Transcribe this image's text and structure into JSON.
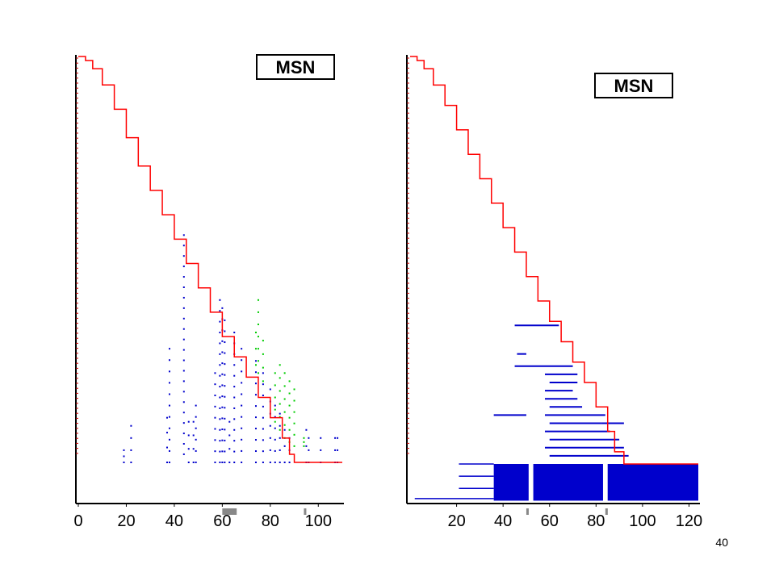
{
  "page_number": "40",
  "colors": {
    "background": "#ffffff",
    "axis": "#000000",
    "curve": "#ff0000",
    "points_primary": "#0000cc",
    "points_secondary": "#00cc00",
    "fill_blue": "#0000cc",
    "marker_gray": "#888888",
    "tick_red": "#cc0000"
  },
  "chart_data": [
    {
      "type": "scatter",
      "label_box": "MSN",
      "title": "",
      "xlabel": "",
      "ylabel": "",
      "xlim": [
        0,
        110
      ],
      "x_ticks": [
        "0",
        "20",
        "40",
        "60",
        "80",
        "100"
      ],
      "x_tick_values": [
        0,
        20,
        40,
        60,
        80,
        100
      ],
      "curve": {
        "name": "",
        "x": [
          0,
          3,
          6,
          10,
          15,
          20,
          25,
          30,
          35,
          40,
          45,
          50,
          55,
          60,
          65,
          70,
          75,
          80,
          85,
          88,
          90,
          95,
          100,
          105,
          110
        ],
        "y": [
          1.0,
          0.99,
          0.97,
          0.93,
          0.87,
          0.8,
          0.73,
          0.67,
          0.61,
          0.55,
          0.49,
          0.43,
          0.37,
          0.31,
          0.26,
          0.21,
          0.16,
          0.11,
          0.06,
          0.02,
          0.0,
          0.0,
          0.0,
          0.0,
          0.0
        ]
      },
      "clusters": [
        {
          "color_key": "points_primary",
          "x": 19,
          "y0": 0.0,
          "y1": 0.03
        },
        {
          "color_key": "points_primary",
          "x": 22,
          "y0": 0.0,
          "y1": 0.09
        },
        {
          "color_key": "points_primary",
          "x": 37,
          "y0": 0.0,
          "y1": 0.11
        },
        {
          "color_key": "points_primary",
          "x": 38,
          "y0": 0.0,
          "y1": 0.28
        },
        {
          "color_key": "points_primary",
          "x": 44,
          "y0": 0.02,
          "y1": 0.56
        },
        {
          "color_key": "points_primary",
          "x": 46,
          "y0": 0.0,
          "y1": 0.1
        },
        {
          "color_key": "points_primary",
          "x": 48,
          "y0": 0.0,
          "y1": 0.1
        },
        {
          "color_key": "points_primary",
          "x": 49,
          "y0": 0.0,
          "y1": 0.14
        },
        {
          "color_key": "points_primary",
          "x": 57,
          "y0": 0.0,
          "y1": 0.22
        },
        {
          "color_key": "points_primary",
          "x": 59,
          "y0": 0.0,
          "y1": 0.4
        },
        {
          "color_key": "points_primary",
          "x": 60,
          "y0": 0.0,
          "y1": 0.38
        },
        {
          "color_key": "points_primary",
          "x": 61,
          "y0": 0.0,
          "y1": 0.35
        },
        {
          "color_key": "points_primary",
          "x": 63,
          "y0": 0.0,
          "y1": 0.1
        },
        {
          "color_key": "points_primary",
          "x": 65,
          "y0": 0.0,
          "y1": 0.32
        },
        {
          "color_key": "points_primary",
          "x": 68,
          "y0": 0.0,
          "y1": 0.28
        },
        {
          "color_key": "points_primary",
          "x": 74,
          "y0": 0.0,
          "y1": 0.25
        },
        {
          "color_key": "points_primary",
          "x": 77,
          "y0": 0.0,
          "y1": 0.22
        },
        {
          "color_key": "points_primary",
          "x": 80,
          "y0": 0.0,
          "y1": 0.18
        },
        {
          "color_key": "points_primary",
          "x": 82,
          "y0": 0.0,
          "y1": 0.14
        },
        {
          "color_key": "points_primary",
          "x": 84,
          "y0": 0.0,
          "y1": 0.12
        },
        {
          "color_key": "points_primary",
          "x": 86,
          "y0": 0.0,
          "y1": 0.08
        },
        {
          "color_key": "points_primary",
          "x": 88,
          "y0": 0.0,
          "y1": 0.06
        },
        {
          "color_key": "points_primary",
          "x": 95,
          "y0": 0.0,
          "y1": 0.08
        },
        {
          "color_key": "points_primary",
          "x": 96,
          "y0": 0.0,
          "y1": 0.06
        },
        {
          "color_key": "points_primary",
          "x": 101,
          "y0": 0.0,
          "y1": 0.06
        },
        {
          "color_key": "points_primary",
          "x": 107,
          "y0": 0.0,
          "y1": 0.06
        },
        {
          "color_key": "points_primary",
          "x": 108,
          "y0": 0.0,
          "y1": 0.06
        },
        {
          "color_key": "points_secondary",
          "x": 74,
          "y0": 0.24,
          "y1": 0.32
        },
        {
          "color_key": "points_secondary",
          "x": 75,
          "y0": 0.22,
          "y1": 0.4
        },
        {
          "color_key": "points_secondary",
          "x": 77,
          "y0": 0.2,
          "y1": 0.3
        },
        {
          "color_key": "points_secondary",
          "x": 82,
          "y0": 0.1,
          "y1": 0.22
        },
        {
          "color_key": "points_secondary",
          "x": 84,
          "y0": 0.08,
          "y1": 0.24
        },
        {
          "color_key": "points_secondary",
          "x": 86,
          "y0": 0.06,
          "y1": 0.22
        },
        {
          "color_key": "points_secondary",
          "x": 88,
          "y0": 0.05,
          "y1": 0.2
        },
        {
          "color_key": "points_secondary",
          "x": 90,
          "y0": 0.04,
          "y1": 0.18
        },
        {
          "color_key": "points_secondary",
          "x": 94,
          "y0": 0.04,
          "y1": 0.06
        }
      ],
      "markers": [
        {
          "x0": 60,
          "x1": 66
        },
        {
          "x0": 94,
          "x1": 95
        }
      ]
    },
    {
      "type": "scatter",
      "label_box": "MSN",
      "title": "",
      "xlabel": "",
      "ylabel": "",
      "xlim": [
        0,
        124
      ],
      "x_ticks": [
        "20",
        "40",
        "60",
        "80",
        "100",
        "120"
      ],
      "x_tick_values": [
        20,
        40,
        60,
        80,
        100,
        120
      ],
      "curve": {
        "name": "",
        "x": [
          0,
          3,
          6,
          10,
          15,
          20,
          25,
          30,
          35,
          40,
          45,
          50,
          55,
          60,
          65,
          70,
          75,
          80,
          85,
          88,
          92,
          100,
          110,
          124
        ],
        "y": [
          1.0,
          0.99,
          0.97,
          0.93,
          0.88,
          0.82,
          0.76,
          0.7,
          0.64,
          0.58,
          0.52,
          0.46,
          0.4,
          0.35,
          0.3,
          0.25,
          0.2,
          0.14,
          0.08,
          0.03,
          0.0,
          0.0,
          0.0,
          0.0
        ]
      },
      "bars": [
        {
          "x0": 45,
          "x1": 64,
          "y": 0.34
        },
        {
          "x0": 46,
          "x1": 50,
          "y": 0.27
        },
        {
          "x0": 45,
          "x1": 70,
          "y": 0.24
        },
        {
          "x0": 58,
          "x1": 72,
          "y": 0.22
        },
        {
          "x0": 60,
          "x1": 72,
          "y": 0.2
        },
        {
          "x0": 58,
          "x1": 70,
          "y": 0.18
        },
        {
          "x0": 58,
          "x1": 72,
          "y": 0.16
        },
        {
          "x0": 60,
          "x1": 74,
          "y": 0.14
        },
        {
          "x0": 36,
          "x1": 50,
          "y": 0.12
        },
        {
          "x0": 58,
          "x1": 84,
          "y": 0.12
        },
        {
          "x0": 60,
          "x1": 82,
          "y": 0.1
        },
        {
          "x0": 82,
          "x1": 92,
          "y": 0.1
        },
        {
          "x0": 58,
          "x1": 86,
          "y": 0.08
        },
        {
          "x0": 60,
          "x1": 90,
          "y": 0.06
        },
        {
          "x0": 58,
          "x1": 92,
          "y": 0.04
        },
        {
          "x0": 60,
          "x1": 94,
          "y": 0.02
        }
      ],
      "blocks": [
        {
          "x0": 36,
          "x1": 51,
          "y0": -0.09,
          "y1": 0.0
        },
        {
          "x0": 53,
          "x1": 83,
          "y0": -0.09,
          "y1": 0.0
        },
        {
          "x0": 85,
          "x1": 124,
          "y0": -0.09,
          "y1": 0.0
        }
      ],
      "left_lines": [
        {
          "x0": 21,
          "x1": 36,
          "y": -0.0
        },
        {
          "x0": 21,
          "x1": 36,
          "y": -0.03
        },
        {
          "x0": 21,
          "x1": 36,
          "y": -0.06
        },
        {
          "x0": 2,
          "x1": 36,
          "y": -0.085
        }
      ],
      "markers": [
        {
          "x0": 50,
          "x1": 51
        },
        {
          "x0": 84,
          "x1": 85
        }
      ]
    }
  ]
}
